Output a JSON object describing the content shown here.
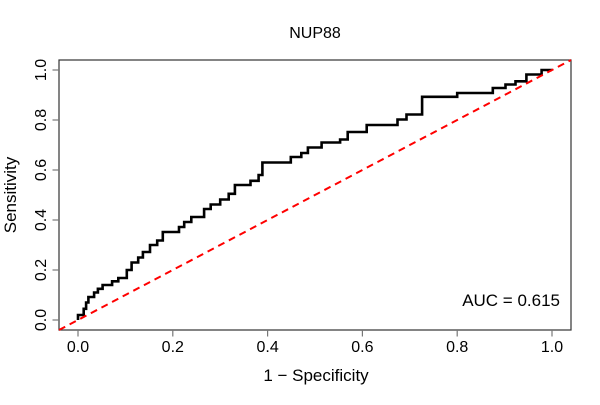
{
  "title": "NUP88",
  "axes": {
    "x_label": "1 − Specificity",
    "y_label": "Sensitivity",
    "x_tick_labels": [
      "0.0",
      "0.2",
      "0.4",
      "0.6",
      "0.8",
      "1.0"
    ],
    "y_tick_labels": [
      "0.0",
      "0.2",
      "0.4",
      "0.6",
      "0.8",
      "1.0"
    ]
  },
  "annotation": {
    "auc_label": "AUC = 0.615"
  },
  "colors": {
    "curve": "#000000",
    "diagonal": "#ff0000",
    "box": "#333333",
    "tick": "#777777"
  },
  "chart_data": {
    "type": "line",
    "title": "NUP88",
    "xlabel": "1 − Specificity",
    "ylabel": "Sensitivity",
    "xlim": [
      -0.04,
      1.04
    ],
    "ylim": [
      -0.04,
      1.04
    ],
    "x_ticks": [
      0.0,
      0.2,
      0.4,
      0.6,
      0.8,
      1.0
    ],
    "y_ticks": [
      0.0,
      0.2,
      0.4,
      0.6,
      0.8,
      1.0
    ],
    "grid": false,
    "legend": "none",
    "auc": 0.615,
    "series": [
      {
        "name": "ROC curve",
        "style": "step",
        "color": "#000000",
        "width": 2.6,
        "points": [
          [
            0.0,
            0.0
          ],
          [
            0.0,
            0.02
          ],
          [
            0.012,
            0.02
          ],
          [
            0.012,
            0.045
          ],
          [
            0.017,
            0.045
          ],
          [
            0.017,
            0.07
          ],
          [
            0.022,
            0.07
          ],
          [
            0.022,
            0.092
          ],
          [
            0.034,
            0.092
          ],
          [
            0.034,
            0.11
          ],
          [
            0.042,
            0.11
          ],
          [
            0.042,
            0.125
          ],
          [
            0.052,
            0.125
          ],
          [
            0.052,
            0.14
          ],
          [
            0.072,
            0.14
          ],
          [
            0.072,
            0.155
          ],
          [
            0.085,
            0.155
          ],
          [
            0.085,
            0.168
          ],
          [
            0.103,
            0.168
          ],
          [
            0.103,
            0.2
          ],
          [
            0.113,
            0.2
          ],
          [
            0.113,
            0.23
          ],
          [
            0.127,
            0.23
          ],
          [
            0.127,
            0.25
          ],
          [
            0.137,
            0.25
          ],
          [
            0.137,
            0.272
          ],
          [
            0.152,
            0.272
          ],
          [
            0.152,
            0.3
          ],
          [
            0.167,
            0.3
          ],
          [
            0.167,
            0.318
          ],
          [
            0.179,
            0.318
          ],
          [
            0.179,
            0.352
          ],
          [
            0.213,
            0.352
          ],
          [
            0.213,
            0.372
          ],
          [
            0.224,
            0.372
          ],
          [
            0.224,
            0.392
          ],
          [
            0.239,
            0.392
          ],
          [
            0.239,
            0.412
          ],
          [
            0.266,
            0.412
          ],
          [
            0.266,
            0.444
          ],
          [
            0.28,
            0.444
          ],
          [
            0.28,
            0.462
          ],
          [
            0.3,
            0.462
          ],
          [
            0.3,
            0.482
          ],
          [
            0.318,
            0.482
          ],
          [
            0.318,
            0.505
          ],
          [
            0.331,
            0.505
          ],
          [
            0.331,
            0.54
          ],
          [
            0.364,
            0.54
          ],
          [
            0.364,
            0.557
          ],
          [
            0.381,
            0.557
          ],
          [
            0.381,
            0.58
          ],
          [
            0.389,
            0.58
          ],
          [
            0.389,
            0.63
          ],
          [
            0.449,
            0.63
          ],
          [
            0.449,
            0.652
          ],
          [
            0.471,
            0.652
          ],
          [
            0.471,
            0.668
          ],
          [
            0.485,
            0.668
          ],
          [
            0.485,
            0.69
          ],
          [
            0.514,
            0.69
          ],
          [
            0.514,
            0.71
          ],
          [
            0.553,
            0.71
          ],
          [
            0.553,
            0.722
          ],
          [
            0.569,
            0.722
          ],
          [
            0.569,
            0.752
          ],
          [
            0.609,
            0.752
          ],
          [
            0.609,
            0.78
          ],
          [
            0.674,
            0.78
          ],
          [
            0.674,
            0.802
          ],
          [
            0.693,
            0.802
          ],
          [
            0.693,
            0.822
          ],
          [
            0.726,
            0.822
          ],
          [
            0.726,
            0.893
          ],
          [
            0.8,
            0.893
          ],
          [
            0.8,
            0.908
          ],
          [
            0.875,
            0.908
          ],
          [
            0.875,
            0.928
          ],
          [
            0.902,
            0.928
          ],
          [
            0.902,
            0.942
          ],
          [
            0.923,
            0.942
          ],
          [
            0.923,
            0.955
          ],
          [
            0.946,
            0.955
          ],
          [
            0.946,
            0.982
          ],
          [
            0.978,
            0.982
          ],
          [
            0.978,
            1.0
          ],
          [
            1.0,
            1.0
          ]
        ]
      },
      {
        "name": "reference diagonal",
        "style": "dashed",
        "color": "#ff0000",
        "width": 2,
        "dash": "7,5",
        "points": [
          [
            -0.04,
            -0.04
          ],
          [
            1.04,
            1.04
          ]
        ]
      }
    ]
  }
}
